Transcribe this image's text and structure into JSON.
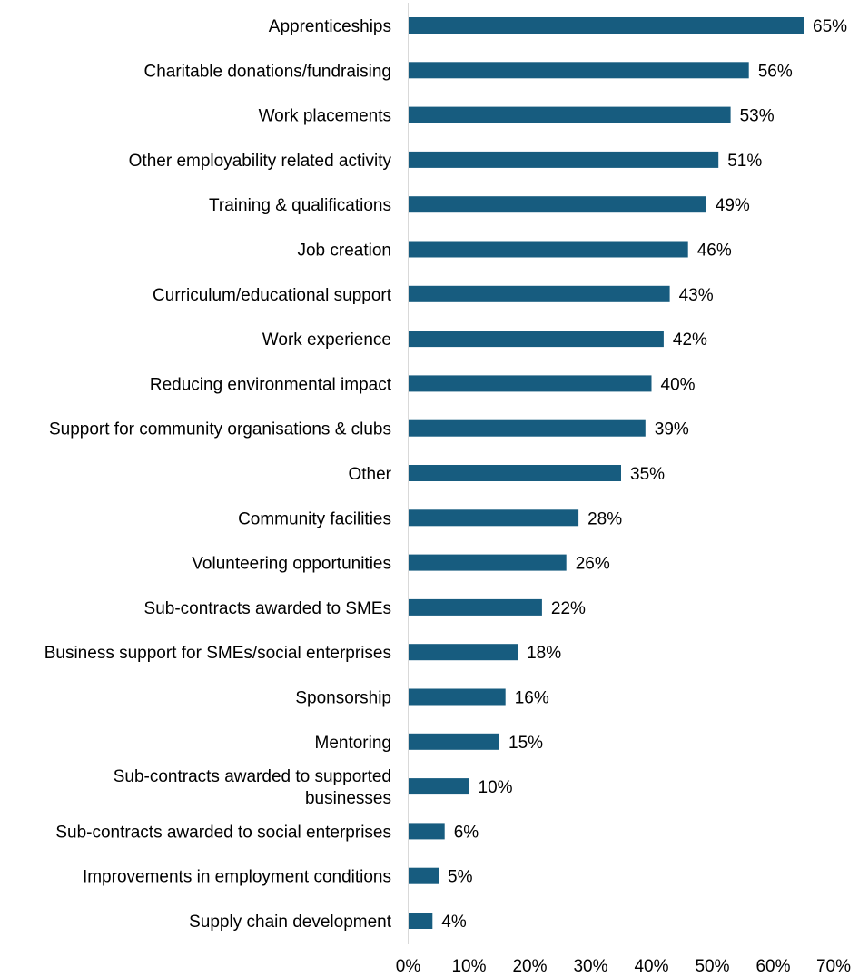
{
  "chart_data": {
    "type": "bar",
    "orientation": "horizontal",
    "categories": [
      "Apprenticeships",
      "Charitable donations/fundraising",
      "Work placements",
      "Other employability related activity",
      "Training & qualifications",
      "Job creation",
      "Curriculum/educational support",
      "Work experience",
      "Reducing environmental impact",
      "Support for community organisations & clubs",
      "Other",
      "Community facilities",
      "Volunteering opportunities",
      "Sub-contracts awarded to SMEs",
      "Business support for SMEs/social enterprises",
      "Sponsorship",
      "Mentoring",
      "Sub-contracts awarded to supported businesses",
      "Sub-contracts awarded to social enterprises",
      "Improvements in employment conditions",
      "Supply chain development"
    ],
    "category_lines": [
      [
        "Apprenticeships"
      ],
      [
        "Charitable donations/fundraising"
      ],
      [
        "Work placements"
      ],
      [
        "Other employability related activity"
      ],
      [
        "Training & qualifications"
      ],
      [
        "Job creation"
      ],
      [
        "Curriculum/educational support"
      ],
      [
        "Work experience"
      ],
      [
        "Reducing environmental impact"
      ],
      [
        "Support for community organisations & clubs"
      ],
      [
        "Other"
      ],
      [
        "Community facilities"
      ],
      [
        "Volunteering opportunities"
      ],
      [
        "Sub-contracts awarded to SMEs"
      ],
      [
        "Business support for SMEs/social enterprises"
      ],
      [
        "Sponsorship"
      ],
      [
        "Mentoring"
      ],
      [
        "Sub-contracts awarded to supported",
        "businesses"
      ],
      [
        "Sub-contracts awarded to social enterprises"
      ],
      [
        "Improvements in employment conditions"
      ],
      [
        "Supply chain development"
      ]
    ],
    "values": [
      65,
      56,
      53,
      51,
      49,
      46,
      43,
      42,
      40,
      39,
      35,
      28,
      26,
      22,
      18,
      16,
      15,
      10,
      6,
      5,
      4
    ],
    "value_labels": [
      "65%",
      "56%",
      "53%",
      "51%",
      "49%",
      "46%",
      "43%",
      "42%",
      "40%",
      "39%",
      "35%",
      "28%",
      "26%",
      "22%",
      "18%",
      "16%",
      "15%",
      "10%",
      "6%",
      "5%",
      "4%"
    ],
    "xlim": [
      0,
      70
    ],
    "x_ticks": [
      0,
      10,
      20,
      30,
      40,
      50,
      60,
      70
    ],
    "x_tick_labels": [
      "0%",
      "10%",
      "20%",
      "30%",
      "40%",
      "50%",
      "60%",
      "70%"
    ],
    "title": "",
    "xlabel": "",
    "ylabel": "",
    "grid": false,
    "legend": "none",
    "colors": {
      "bar": "#175c7f",
      "axis": "#d9d9d9",
      "text": "#000000"
    }
  }
}
